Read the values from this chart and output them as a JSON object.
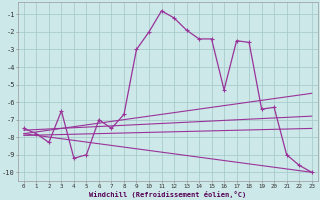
{
  "xlabel": "Windchill (Refroidissement éolien,°C)",
  "background_color": "#cce8e8",
  "grid_color": "#aacccc",
  "line_color": "#993399",
  "xlim": [
    -0.5,
    23.5
  ],
  "ylim": [
    -10.5,
    -0.3
  ],
  "xticks": [
    0,
    1,
    2,
    3,
    4,
    5,
    6,
    7,
    8,
    9,
    10,
    11,
    12,
    13,
    14,
    15,
    16,
    17,
    18,
    19,
    20,
    21,
    22,
    23
  ],
  "yticks": [
    -1,
    -2,
    -3,
    -4,
    -5,
    -6,
    -7,
    -8,
    -9,
    -10
  ],
  "main_x": [
    0,
    1,
    2,
    3,
    4,
    5,
    6,
    7,
    8,
    9,
    10,
    11,
    12,
    13,
    14,
    15,
    16,
    17,
    18,
    19,
    20,
    21,
    22,
    23
  ],
  "main_y": [
    -7.5,
    -7.8,
    -8.3,
    -6.5,
    -9.2,
    -9.0,
    -7.0,
    -7.5,
    -6.7,
    -3.0,
    -2.0,
    -0.8,
    -1.2,
    -1.9,
    -2.4,
    -2.4,
    -5.3,
    -2.5,
    -2.6,
    -6.4,
    -6.3,
    -9.0,
    -9.6,
    -10.0
  ],
  "trend1_x": [
    0,
    23
  ],
  "trend1_y": [
    -7.6,
    -6.8
  ],
  "trend2_x": [
    0,
    23
  ],
  "trend2_y": [
    -7.8,
    -10.0
  ],
  "trend3_x": [
    0,
    23
  ],
  "trend3_y": [
    -7.8,
    -5.5
  ],
  "trend4_x": [
    0,
    23
  ],
  "trend4_y": [
    -7.9,
    -7.5
  ]
}
